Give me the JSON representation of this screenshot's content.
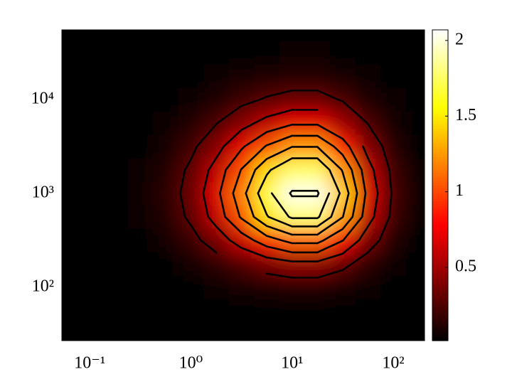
{
  "chart_data": {
    "type": "contour",
    "x": [
      0.0562,
      0.1,
      0.178,
      0.316,
      0.562,
      1,
      1.78,
      3.16,
      5.62,
      10,
      17.8,
      31.6,
      56.2,
      100,
      178
    ],
    "y": [
      31.6,
      56.2,
      100,
      178,
      316,
      562,
      1000,
      1778,
      3162,
      5623,
      10000,
      17783,
      31623,
      56234
    ],
    "z": [
      [
        0,
        0,
        0,
        0,
        0,
        0,
        0,
        0,
        0,
        0,
        0,
        0,
        0,
        0,
        0
      ],
      [
        0,
        0,
        0,
        0,
        0,
        0,
        0.01,
        0.01,
        0.02,
        0.02,
        0.02,
        0.02,
        0.01,
        0,
        0
      ],
      [
        0,
        0,
        0,
        0,
        0.01,
        0.02,
        0.04,
        0.07,
        0.1,
        0.12,
        0.12,
        0.09,
        0.04,
        0.01,
        0
      ],
      [
        0,
        0,
        0,
        0.01,
        0.03,
        0.07,
        0.15,
        0.25,
        0.36,
        0.44,
        0.44,
        0.31,
        0.15,
        0.05,
        0.01
      ],
      [
        0,
        0,
        0.01,
        0.03,
        0.07,
        0.18,
        0.36,
        0.62,
        0.89,
        1.08,
        1.08,
        0.76,
        0.36,
        0.12,
        0.03
      ],
      [
        0,
        0,
        0.01,
        0.04,
        0.12,
        0.29,
        0.6,
        1.03,
        1.48,
        1.79,
        1.79,
        1.26,
        0.6,
        0.19,
        0.04
      ],
      [
        0,
        0,
        0.01,
        0.05,
        0.14,
        0.33,
        0.68,
        1.16,
        1.68,
        2.03,
        2.03,
        1.43,
        0.68,
        0.22,
        0.05
      ],
      [
        0,
        0,
        0.01,
        0.04,
        0.12,
        0.29,
        0.59,
        1.01,
        1.45,
        1.75,
        1.75,
        1.23,
        0.59,
        0.19,
        0.04
      ],
      [
        0,
        0,
        0.01,
        0.03,
        0.08,
        0.2,
        0.41,
        0.71,
        1.02,
        1.24,
        1.24,
        0.87,
        0.41,
        0.13,
        0.03
      ],
      [
        0,
        0,
        0,
        0.02,
        0.05,
        0.12,
        0.24,
        0.41,
        0.58,
        0.71,
        0.71,
        0.5,
        0.24,
        0.08,
        0.02
      ],
      [
        0,
        0,
        0,
        0.01,
        0.02,
        0.05,
        0.11,
        0.19,
        0.27,
        0.33,
        0.33,
        0.23,
        0.11,
        0.04,
        0.01
      ],
      [
        0,
        0,
        0,
        0,
        0.01,
        0.02,
        0.04,
        0.07,
        0.1,
        0.12,
        0.12,
        0.09,
        0.04,
        0.01,
        0
      ],
      [
        0,
        0,
        0,
        0,
        0,
        0.01,
        0.01,
        0.02,
        0.03,
        0.04,
        0.04,
        0.03,
        0.01,
        0,
        0
      ],
      [
        0,
        0,
        0,
        0,
        0,
        0,
        0,
        0.01,
        0.01,
        0.01,
        0.01,
        0.01,
        0,
        0,
        0
      ]
    ],
    "contour_levels": [
      0.25,
      0.5,
      0.75,
      1,
      1.25,
      1.5,
      1.75,
      2
    ],
    "contour_color": "#000000",
    "colormap": "hot",
    "clim": [
      0.016,
      2.07
    ],
    "colorbar_ticks": [
      0.5,
      1,
      1.5,
      2
    ],
    "xscale": "log",
    "yscale": "log",
    "xlim": [
      0.053,
      204
    ],
    "ylim": [
      27,
      55000
    ],
    "xticks": [
      {
        "value": 0.1,
        "label": "10⁻¹"
      },
      {
        "value": 1,
        "label": "10⁰"
      },
      {
        "value": 10,
        "label": "10¹"
      },
      {
        "value": 100,
        "label": "10²"
      }
    ],
    "yticks": [
      {
        "value": 100,
        "label": "10²"
      },
      {
        "value": 1000,
        "label": "10³"
      },
      {
        "value": 10000,
        "label": "10⁴"
      }
    ]
  }
}
